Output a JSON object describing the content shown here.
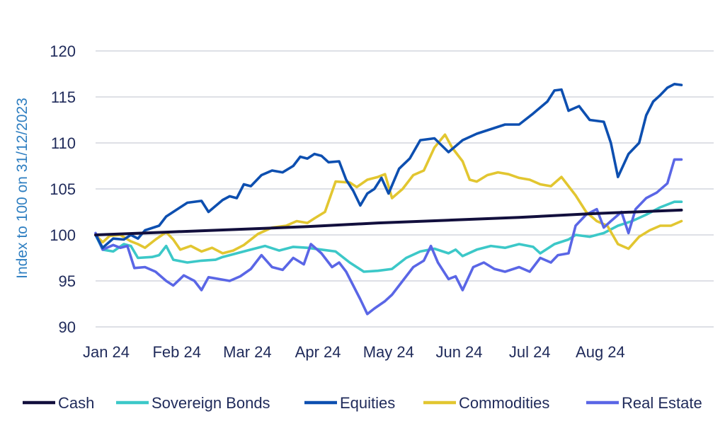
{
  "chart_data": {
    "type": "line",
    "title": "",
    "xlabel": "",
    "ylabel": "Index to 100 on 31/12/2023",
    "ylim": [
      90,
      120
    ],
    "yticks": [
      90,
      95,
      100,
      105,
      110,
      115,
      120
    ],
    "xlim": [
      0,
      8.3
    ],
    "xticks": [
      {
        "label": "Jan 24",
        "value": 0
      },
      {
        "label": "Feb 24",
        "value": 1
      },
      {
        "label": "Mar 24",
        "value": 2
      },
      {
        "label": "Apr 24",
        "value": 3
      },
      {
        "label": "May 24",
        "value": 4
      },
      {
        "label": "Jun 24",
        "value": 5
      },
      {
        "label": "Jul 24",
        "value": 6
      },
      {
        "label": "Aug 24",
        "value": 7
      }
    ],
    "grid": "horizontal",
    "legend_position": "bottom",
    "series": [
      {
        "name": "Cash",
        "color": "#120f3d",
        "points": [
          [
            0,
            100.0
          ],
          [
            1,
            100.3
          ],
          [
            2,
            100.6
          ],
          [
            3,
            100.9
          ],
          [
            4,
            101.3
          ],
          [
            5,
            101.6
          ],
          [
            6,
            101.9
          ],
          [
            7,
            102.3
          ],
          [
            8.3,
            102.7
          ]
        ]
      },
      {
        "name": "Sovereign Bonds",
        "color": "#3cc8c8",
        "points": [
          [
            0,
            100.0
          ],
          [
            0.1,
            98.4
          ],
          [
            0.25,
            98.2
          ],
          [
            0.4,
            99.0
          ],
          [
            0.5,
            98.8
          ],
          [
            0.6,
            97.5
          ],
          [
            0.8,
            97.6
          ],
          [
            0.9,
            97.8
          ],
          [
            1.0,
            98.8
          ],
          [
            1.1,
            97.3
          ],
          [
            1.3,
            97.0
          ],
          [
            1.5,
            97.2
          ],
          [
            1.7,
            97.3
          ],
          [
            1.8,
            97.6
          ],
          [
            2.0,
            98.0
          ],
          [
            2.2,
            98.4
          ],
          [
            2.4,
            98.8
          ],
          [
            2.6,
            98.3
          ],
          [
            2.8,
            98.7
          ],
          [
            3.0,
            98.6
          ],
          [
            3.2,
            98.4
          ],
          [
            3.4,
            98.2
          ],
          [
            3.6,
            97.0
          ],
          [
            3.8,
            96.0
          ],
          [
            4.0,
            96.1
          ],
          [
            4.2,
            96.3
          ],
          [
            4.4,
            97.5
          ],
          [
            4.6,
            98.2
          ],
          [
            4.8,
            98.5
          ],
          [
            5.0,
            98.0
          ],
          [
            5.1,
            98.4
          ],
          [
            5.2,
            97.7
          ],
          [
            5.4,
            98.4
          ],
          [
            5.6,
            98.8
          ],
          [
            5.8,
            98.6
          ],
          [
            6.0,
            99.0
          ],
          [
            6.2,
            98.7
          ],
          [
            6.3,
            98.0
          ],
          [
            6.5,
            99.0
          ],
          [
            6.7,
            99.5
          ],
          [
            6.8,
            100.0
          ],
          [
            7.0,
            99.8
          ],
          [
            7.2,
            100.2
          ],
          [
            7.4,
            101.0
          ],
          [
            7.6,
            101.5
          ],
          [
            7.8,
            102.2
          ],
          [
            8.0,
            103.0
          ],
          [
            8.2,
            103.6
          ],
          [
            8.3,
            103.6
          ]
        ]
      },
      {
        "name": "Equities",
        "color": "#0d4fb0",
        "points": [
          [
            0,
            100.0
          ],
          [
            0.1,
            98.6
          ],
          [
            0.25,
            99.6
          ],
          [
            0.4,
            99.5
          ],
          [
            0.5,
            100.0
          ],
          [
            0.6,
            99.6
          ],
          [
            0.7,
            100.5
          ],
          [
            0.9,
            101.0
          ],
          [
            1.0,
            102.0
          ],
          [
            1.2,
            103.0
          ],
          [
            1.3,
            103.5
          ],
          [
            1.5,
            103.7
          ],
          [
            1.6,
            102.5
          ],
          [
            1.8,
            103.8
          ],
          [
            1.9,
            104.2
          ],
          [
            2.0,
            104.0
          ],
          [
            2.1,
            105.5
          ],
          [
            2.2,
            105.3
          ],
          [
            2.35,
            106.5
          ],
          [
            2.5,
            107.0
          ],
          [
            2.65,
            106.8
          ],
          [
            2.8,
            107.5
          ],
          [
            2.9,
            108.5
          ],
          [
            3.0,
            108.3
          ],
          [
            3.1,
            108.8
          ],
          [
            3.2,
            108.6
          ],
          [
            3.3,
            107.9
          ],
          [
            3.45,
            108.0
          ],
          [
            3.55,
            106.0
          ],
          [
            3.65,
            104.8
          ],
          [
            3.75,
            103.2
          ],
          [
            3.85,
            104.5
          ],
          [
            3.95,
            105.0
          ],
          [
            4.05,
            106.2
          ],
          [
            4.15,
            104.5
          ],
          [
            4.3,
            107.2
          ],
          [
            4.45,
            108.3
          ],
          [
            4.6,
            110.3
          ],
          [
            4.8,
            110.5
          ],
          [
            5.0,
            109.0
          ],
          [
            5.2,
            110.3
          ],
          [
            5.4,
            111.0
          ],
          [
            5.6,
            111.5
          ],
          [
            5.8,
            112.0
          ],
          [
            6.0,
            112.0
          ],
          [
            6.2,
            113.2
          ],
          [
            6.4,
            114.5
          ],
          [
            6.5,
            115.7
          ],
          [
            6.6,
            115.8
          ],
          [
            6.7,
            113.5
          ],
          [
            6.85,
            114.0
          ],
          [
            7.0,
            112.5
          ],
          [
            7.2,
            112.3
          ],
          [
            7.3,
            110.0
          ],
          [
            7.4,
            106.3
          ],
          [
            7.55,
            108.8
          ],
          [
            7.7,
            110.0
          ],
          [
            7.8,
            113.0
          ],
          [
            7.9,
            114.5
          ],
          [
            8.0,
            115.2
          ],
          [
            8.1,
            116.0
          ],
          [
            8.2,
            116.4
          ],
          [
            8.3,
            116.3
          ]
        ]
      },
      {
        "name": "Commodities",
        "color": "#e2c630",
        "points": [
          [
            0,
            100.0
          ],
          [
            0.1,
            99.2
          ],
          [
            0.2,
            99.9
          ],
          [
            0.35,
            100.0
          ],
          [
            0.5,
            99.3
          ],
          [
            0.6,
            99.0
          ],
          [
            0.7,
            98.6
          ],
          [
            0.85,
            99.5
          ],
          [
            1.0,
            100.3
          ],
          [
            1.1,
            99.5
          ],
          [
            1.2,
            98.4
          ],
          [
            1.35,
            98.8
          ],
          [
            1.5,
            98.2
          ],
          [
            1.65,
            98.6
          ],
          [
            1.8,
            98.0
          ],
          [
            1.95,
            98.3
          ],
          [
            2.1,
            98.9
          ],
          [
            2.3,
            100.1
          ],
          [
            2.5,
            100.8
          ],
          [
            2.7,
            101.0
          ],
          [
            2.85,
            101.5
          ],
          [
            3.0,
            101.3
          ],
          [
            3.1,
            101.8
          ],
          [
            3.25,
            102.5
          ],
          [
            3.4,
            105.8
          ],
          [
            3.6,
            105.7
          ],
          [
            3.7,
            105.2
          ],
          [
            3.85,
            106.0
          ],
          [
            4.0,
            106.3
          ],
          [
            4.1,
            106.6
          ],
          [
            4.2,
            104.0
          ],
          [
            4.35,
            105.0
          ],
          [
            4.5,
            106.5
          ],
          [
            4.65,
            107.0
          ],
          [
            4.8,
            109.5
          ],
          [
            4.95,
            110.9
          ],
          [
            5.05,
            109.5
          ],
          [
            5.2,
            108.0
          ],
          [
            5.3,
            106.0
          ],
          [
            5.4,
            105.8
          ],
          [
            5.55,
            106.5
          ],
          [
            5.7,
            106.8
          ],
          [
            5.85,
            106.6
          ],
          [
            6.0,
            106.2
          ],
          [
            6.15,
            106.0
          ],
          [
            6.3,
            105.5
          ],
          [
            6.45,
            105.3
          ],
          [
            6.6,
            106.3
          ],
          [
            6.8,
            104.3
          ],
          [
            6.95,
            102.5
          ],
          [
            7.1,
            101.5
          ],
          [
            7.25,
            101.0
          ],
          [
            7.4,
            99.0
          ],
          [
            7.55,
            98.5
          ],
          [
            7.7,
            99.8
          ],
          [
            7.85,
            100.5
          ],
          [
            8.0,
            101.0
          ],
          [
            8.15,
            101.0
          ],
          [
            8.3,
            101.5
          ]
        ]
      },
      {
        "name": "Real Estate",
        "color": "#5a66e6",
        "points": [
          [
            0,
            100.2
          ],
          [
            0.1,
            98.4
          ],
          [
            0.25,
            98.9
          ],
          [
            0.35,
            98.6
          ],
          [
            0.45,
            98.8
          ],
          [
            0.55,
            96.4
          ],
          [
            0.7,
            96.5
          ],
          [
            0.85,
            96.0
          ],
          [
            1.0,
            95.0
          ],
          [
            1.1,
            94.5
          ],
          [
            1.25,
            95.6
          ],
          [
            1.4,
            95.0
          ],
          [
            1.5,
            94.0
          ],
          [
            1.6,
            95.4
          ],
          [
            1.75,
            95.2
          ],
          [
            1.9,
            95.0
          ],
          [
            2.05,
            95.5
          ],
          [
            2.2,
            96.3
          ],
          [
            2.35,
            97.8
          ],
          [
            2.5,
            96.5
          ],
          [
            2.65,
            96.2
          ],
          [
            2.8,
            97.5
          ],
          [
            2.95,
            96.8
          ],
          [
            3.05,
            99.0
          ],
          [
            3.2,
            98.0
          ],
          [
            3.35,
            96.5
          ],
          [
            3.45,
            97.0
          ],
          [
            3.55,
            96.0
          ],
          [
            3.65,
            94.5
          ],
          [
            3.75,
            93.0
          ],
          [
            3.85,
            91.4
          ],
          [
            3.95,
            92.0
          ],
          [
            4.1,
            92.8
          ],
          [
            4.2,
            93.5
          ],
          [
            4.35,
            95.0
          ],
          [
            4.5,
            96.5
          ],
          [
            4.65,
            97.2
          ],
          [
            4.75,
            98.8
          ],
          [
            4.85,
            97.0
          ],
          [
            5.0,
            95.2
          ],
          [
            5.1,
            95.5
          ],
          [
            5.2,
            94.0
          ],
          [
            5.35,
            96.5
          ],
          [
            5.5,
            97.0
          ],
          [
            5.65,
            96.3
          ],
          [
            5.8,
            96.0
          ],
          [
            6.0,
            96.5
          ],
          [
            6.15,
            96.0
          ],
          [
            6.3,
            97.5
          ],
          [
            6.45,
            97.0
          ],
          [
            6.55,
            97.8
          ],
          [
            6.7,
            98.0
          ],
          [
            6.8,
            101.0
          ],
          [
            6.95,
            102.2
          ],
          [
            7.1,
            102.8
          ],
          [
            7.2,
            100.8
          ],
          [
            7.3,
            101.5
          ],
          [
            7.45,
            102.5
          ],
          [
            7.55,
            100.2
          ],
          [
            7.65,
            102.8
          ],
          [
            7.8,
            104.0
          ],
          [
            7.95,
            104.6
          ],
          [
            8.1,
            105.6
          ],
          [
            8.2,
            108.2
          ],
          [
            8.3,
            108.2
          ]
        ]
      }
    ]
  }
}
